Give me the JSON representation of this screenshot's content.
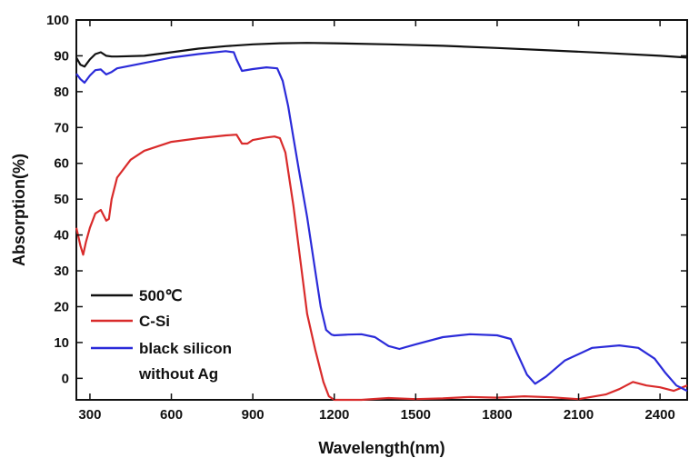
{
  "chart_data": {
    "type": "line",
    "xlabel": "Wavelength(nm)",
    "ylabel": "Absorption(%)",
    "xlim": [
      250,
      2500
    ],
    "ylim": [
      -6,
      100
    ],
    "xticks": [
      300,
      600,
      900,
      1200,
      1500,
      1800,
      2100,
      2400
    ],
    "yticks": [
      0,
      10,
      20,
      30,
      40,
      50,
      60,
      70,
      80,
      90,
      100
    ],
    "grid": false,
    "legend_position": "bottom-left",
    "series": [
      {
        "name": "500℃",
        "color": "#111111",
        "x": [
          250,
          265,
          280,
          300,
          320,
          340,
          360,
          380,
          400,
          500,
          600,
          700,
          800,
          900,
          1000,
          1100,
          1200,
          1400,
          1600,
          1800,
          2000,
          2200,
          2400,
          2500
        ],
        "y": [
          89.5,
          87.5,
          87.0,
          89.0,
          90.5,
          91.0,
          90.0,
          89.8,
          89.8,
          90.0,
          91.0,
          92.0,
          92.7,
          93.2,
          93.5,
          93.6,
          93.5,
          93.2,
          92.8,
          92.2,
          91.5,
          90.8,
          90.0,
          89.5
        ]
      },
      {
        "name": "C-Si",
        "color": "#d92b2b",
        "x": [
          250,
          265,
          275,
          285,
          300,
          320,
          340,
          360,
          370,
          380,
          400,
          450,
          500,
          600,
          700,
          800,
          840,
          860,
          880,
          900,
          950,
          980,
          1000,
          1020,
          1050,
          1080,
          1100,
          1130,
          1160,
          1180,
          1200,
          1300,
          1400,
          1500,
          1600,
          1700,
          1800,
          1900,
          2000,
          2100,
          2200,
          2250,
          2300,
          2350,
          2400,
          2450,
          2500
        ],
        "y": [
          42,
          37,
          34.5,
          38,
          42,
          46,
          47,
          44,
          44.5,
          50,
          56,
          61,
          63.5,
          66,
          67,
          67.8,
          68,
          65.5,
          65.5,
          66.5,
          67.2,
          67.5,
          67,
          63,
          48,
          30,
          18,
          8,
          -1,
          -5,
          -6,
          -6,
          -5.5,
          -5.8,
          -5.6,
          -5.2,
          -5.4,
          -5,
          -5.3,
          -5.8,
          -4.5,
          -3,
          -1,
          -2,
          -2.5,
          -3.5,
          -2
        ]
      },
      {
        "name": "black silicon without Ag",
        "color": "#2b2bd9",
        "x": [
          250,
          265,
          280,
          300,
          320,
          340,
          360,
          380,
          400,
          500,
          600,
          700,
          800,
          830,
          840,
          860,
          900,
          950,
          990,
          1010,
          1030,
          1050,
          1070,
          1100,
          1130,
          1150,
          1170,
          1190,
          1200,
          1250,
          1300,
          1350,
          1400,
          1440,
          1500,
          1600,
          1700,
          1800,
          1850,
          1880,
          1910,
          1940,
          1980,
          2050,
          2150,
          2250,
          2320,
          2380,
          2420,
          2460,
          2500
        ],
        "y": [
          85,
          83.5,
          82.5,
          84.5,
          86,
          86.2,
          84.8,
          85.5,
          86.5,
          88,
          89.5,
          90.5,
          91.3,
          91,
          89,
          85.8,
          86.3,
          86.8,
          86.5,
          83,
          76,
          67,
          58,
          45,
          30,
          20,
          13.5,
          12.2,
          12,
          12.2,
          12.3,
          11.5,
          9,
          8.2,
          9.5,
          11.5,
          12.3,
          12,
          11,
          6,
          1,
          -1.5,
          0.5,
          5,
          8.5,
          9.2,
          8.5,
          5.5,
          1.5,
          -2,
          -3.5
        ]
      }
    ]
  }
}
